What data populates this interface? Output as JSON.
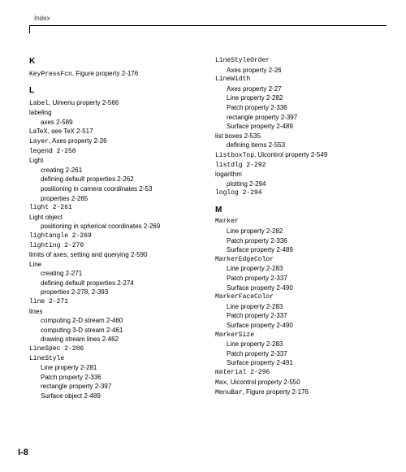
{
  "header": {
    "label": "Index"
  },
  "pageNumber": "I-8",
  "left": {
    "K": {
      "head": "K",
      "items": [
        {
          "pre": "KeyPressFcn",
          "rest": ", Figure property 2-176",
          "mono": true
        }
      ]
    },
    "L": {
      "head": "L",
      "items": [
        {
          "pre": "Label",
          "rest": ", Uimenu property 2-566",
          "mono": true
        },
        {
          "text": "labeling"
        },
        {
          "text": "axes 2-589",
          "sub": true
        },
        {
          "text": "LaTeX, see TeX 2-517"
        },
        {
          "pre": "Layer",
          "rest": ", Axes property 2-26",
          "mono": true
        },
        {
          "text": "legend 2-258",
          "monoAll": true
        },
        {
          "text": "Light"
        },
        {
          "text": "creating 2-261",
          "sub": true
        },
        {
          "text": "defining default properties 2-262",
          "sub": true
        },
        {
          "text": "positioning in camera coordinates 2-53",
          "sub": true
        },
        {
          "text": "properties 2-265",
          "sub": true
        },
        {
          "text": "light 2-261",
          "monoAll": true
        },
        {
          "text": "Light object"
        },
        {
          "text": "positioning in spherical coordinates 2-269",
          "sub": true
        },
        {
          "text": "lightangle 2-269",
          "monoAll": true
        },
        {
          "text": "lighting 2-270",
          "monoAll": true
        },
        {
          "text": "limits of axes, setting and querying 2-590"
        },
        {
          "text": "Line"
        },
        {
          "text": "creating 2-271",
          "sub": true
        },
        {
          "text": "defining default properties 2-274",
          "sub": true
        },
        {
          "text": "properties 2-278, 2-393",
          "sub": true
        },
        {
          "text": "line 2-271",
          "monoAll": true
        },
        {
          "text": "lines"
        },
        {
          "text": "computing 2-D stream 2-460",
          "sub": true
        },
        {
          "text": "computing 3-D stream 2-461",
          "sub": true
        },
        {
          "text": "drawing stream lines 2-462",
          "sub": true
        },
        {
          "text": "LineSpec 2-286",
          "monoAll": true
        },
        {
          "text": "LineStyle",
          "monoAll": true
        },
        {
          "text": "Line property 2-281",
          "sub": true
        },
        {
          "text": "Patch property 2-336",
          "sub": true
        },
        {
          "text": "rectangle property 2-397",
          "sub": true
        },
        {
          "text": "Surface object 2-489",
          "sub": true
        }
      ]
    }
  },
  "right": {
    "cont": {
      "items": [
        {
          "text": "LineStyleOrder",
          "monoAll": true
        },
        {
          "text": "Axes property 2-26",
          "sub": true
        },
        {
          "text": "LineWidth",
          "monoAll": true
        },
        {
          "text": "Axes property 2-27",
          "sub": true
        },
        {
          "text": "Line property 2-282",
          "sub": true
        },
        {
          "text": "Patch property 2-336",
          "sub": true
        },
        {
          "text": "rectangle property 2-397",
          "sub": true
        },
        {
          "text": "Surface property 2-489",
          "sub": true
        },
        {
          "text": "list boxes 2-535"
        },
        {
          "text": "defining items 2-553",
          "sub": true
        },
        {
          "pre": "ListboxTop",
          "rest": ", Uicontrol property 2-549",
          "mono": true
        },
        {
          "text": "listdlg 2-292",
          "monoAll": true
        },
        {
          "text": "logarithm"
        },
        {
          "text": "plotting 2-294",
          "sub": true
        },
        {
          "text": "loglog 2-294",
          "monoAll": true
        }
      ]
    },
    "M": {
      "head": "M",
      "items": [
        {
          "text": "Marker",
          "monoAll": true
        },
        {
          "text": "Line property 2-282",
          "sub": true
        },
        {
          "text": "Patch property 2-336",
          "sub": true
        },
        {
          "text": "Surface property 2-489",
          "sub": true
        },
        {
          "text": "MarkerEdgeColor",
          "monoAll": true
        },
        {
          "text": "Line property 2-283",
          "sub": true
        },
        {
          "text": "Patch property 2-337",
          "sub": true
        },
        {
          "text": "Surface property 2-490",
          "sub": true
        },
        {
          "text": "MarkerFaceColor",
          "monoAll": true
        },
        {
          "text": "Line property 2-283",
          "sub": true
        },
        {
          "text": "Patch property 2-337",
          "sub": true
        },
        {
          "text": "Surface property 2-490",
          "sub": true
        },
        {
          "text": "MarkerSize",
          "monoAll": true
        },
        {
          "text": "Line property 2-283",
          "sub": true
        },
        {
          "text": "Patch property 2-337",
          "sub": true
        },
        {
          "text": "Surface property 2-491",
          "sub": true
        },
        {
          "text": "material 2-296",
          "monoAll": true
        },
        {
          "pre": "Max",
          "rest": ", Uicontrol property 2-550",
          "mono": true
        },
        {
          "pre": "MenuBar",
          "rest": ", Figure property 2-176",
          "mono": true
        }
      ]
    }
  }
}
